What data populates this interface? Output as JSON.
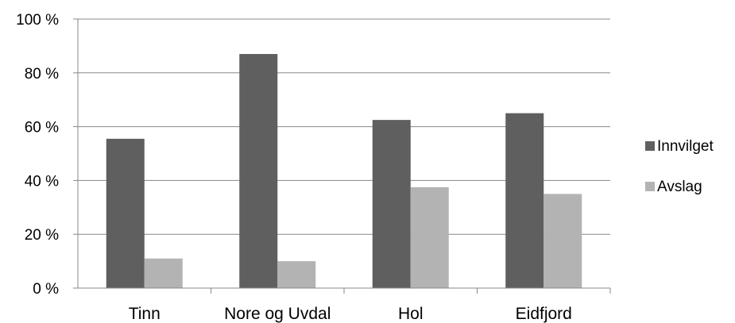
{
  "chart_data": {
    "type": "bar",
    "categories": [
      "Tinn",
      "Nore og Uvdal",
      "Hol",
      "Eidfjord"
    ],
    "series": [
      {
        "name": "Innvilget",
        "values": [
          55.5,
          87,
          62.5,
          65
        ],
        "color": "#5f5f5f"
      },
      {
        "name": "Avslag",
        "values": [
          11,
          10,
          37.5,
          35
        ],
        "color": "#b3b3b3"
      }
    ],
    "ylim": [
      0,
      100
    ],
    "y_ticks": [
      {
        "value": 0,
        "label": "0 %"
      },
      {
        "value": 20,
        "label": "20 %"
      },
      {
        "value": 40,
        "label": "40 %"
      },
      {
        "value": 60,
        "label": "60 %"
      },
      {
        "value": 80,
        "label": "80 %"
      },
      {
        "value": 100,
        "label": "100 %"
      }
    ],
    "grid": true,
    "legend_position": "right"
  }
}
